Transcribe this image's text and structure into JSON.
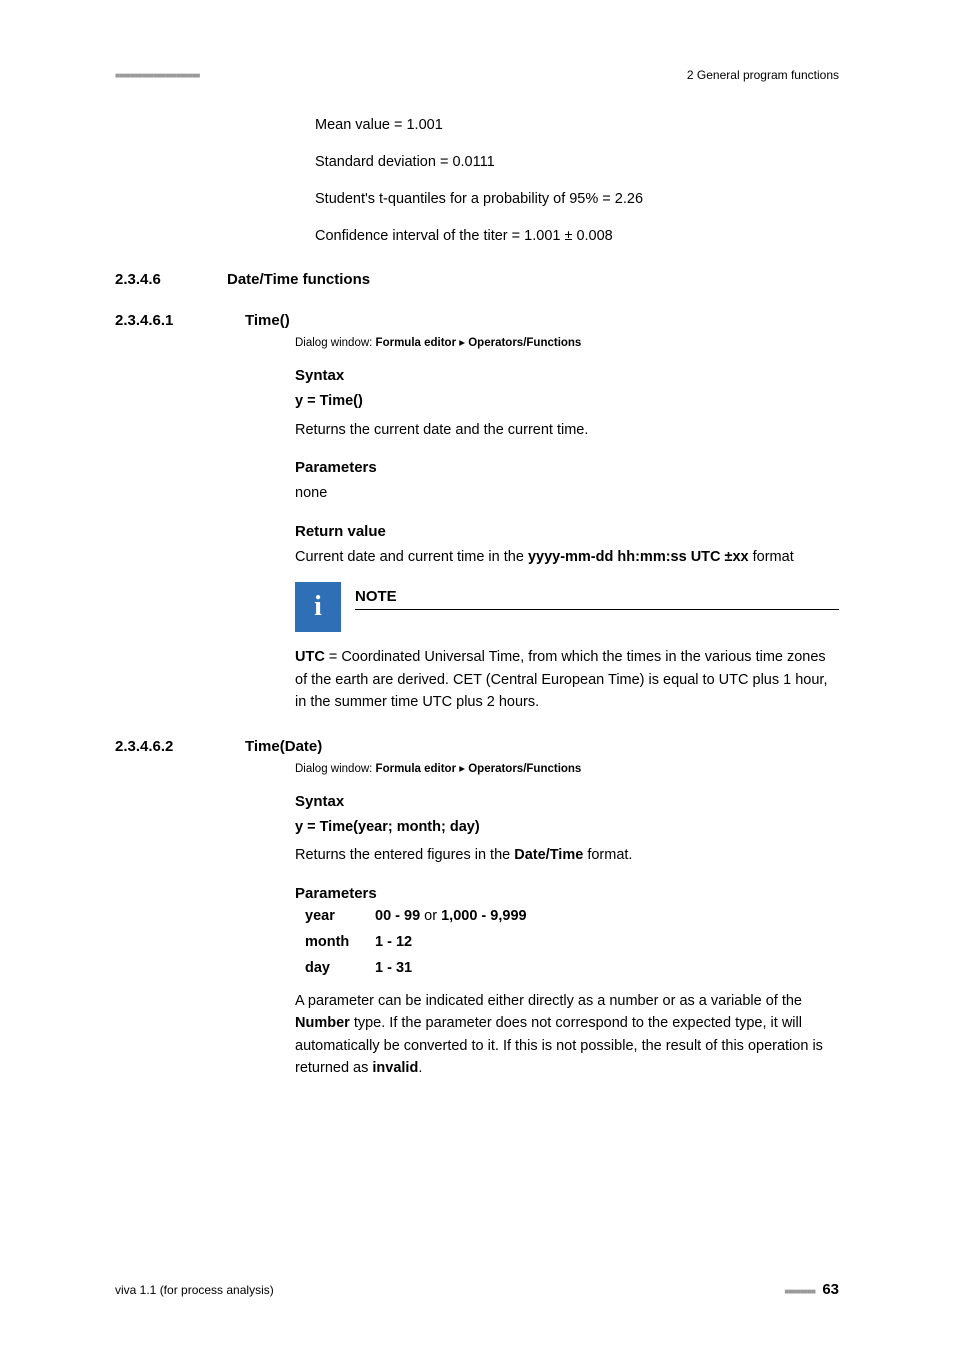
{
  "header": {
    "dots": "■■■■■■■■■■■■■■■■■■■■■■",
    "right": "2 General program functions"
  },
  "intro": {
    "l1": "Mean value = 1.001",
    "l2": "Standard deviation = 0.0111",
    "l3": "Student's t-quantiles for a probability of 95% = 2.26",
    "l4": "Confidence interval of the titer = 1.001 ± 0.008"
  },
  "sec1": {
    "num": "2.3.4.6",
    "title": "Date/Time functions"
  },
  "sec2": {
    "num": "2.3.4.6.1",
    "title": "Time()",
    "dialog_pre": "Dialog window: ",
    "dialog_b1": "Formula editor",
    "dialog_sep": " ▸ ",
    "dialog_b2": "Operators/Functions",
    "syntax_h": "Syntax",
    "syntax": "y = Time()",
    "syntax_desc": "Returns the current date and the current time.",
    "params_h": "Parameters",
    "params_v": "none",
    "return_h": "Return value",
    "return_pre": "Current date and current time in the ",
    "return_b": "yyyy-mm-dd hh:mm:ss UTC ±xx",
    "return_post": " format",
    "note_label": "NOTE",
    "note_b": "UTC",
    "note_text": " = Coordinated Universal Time, from which the times in the various time zones of the earth are derived. CET (Central European Time) is equal to UTC plus 1 hour, in the summer time UTC plus 2 hours."
  },
  "sec3": {
    "num": "2.3.4.6.2",
    "title": "Time(Date)",
    "dialog_pre": "Dialog window: ",
    "dialog_b1": "Formula editor",
    "dialog_sep": " ▸ ",
    "dialog_b2": "Operators/Functions",
    "syntax_h": "Syntax",
    "syntax": "y = Time(year; month; day)",
    "syntax_desc_pre": "Returns the entered figures in the ",
    "syntax_desc_b": "Date/Time",
    "syntax_desc_post": " format.",
    "params_h": "Parameters",
    "params": [
      {
        "name": "year",
        "b1": "00 - 99",
        "mid": " or ",
        "b2": "1,000 - 9,999"
      },
      {
        "name": "month",
        "b1": "1 - 12",
        "mid": "",
        "b2": ""
      },
      {
        "name": "day",
        "b1": "1 - 31",
        "mid": "",
        "b2": ""
      }
    ],
    "after_pre": "A parameter can be indicated either directly as a number or as a variable of the ",
    "after_b1": "Number",
    "after_mid": " type. If the parameter does not correspond to the expected type, it will automatically be converted to it. If this is not possible, the result of this operation is returned as ",
    "after_b2": "invalid",
    "after_post": "."
  },
  "footer": {
    "left": "viva 1.1 (for process analysis)",
    "dots": "■■■■■■■■",
    "page": "63"
  },
  "colors": {
    "note_bg": "#2f6fb5",
    "dot_gray": "#9a9a9a",
    "text": "#000000",
    "bg": "#ffffff"
  }
}
